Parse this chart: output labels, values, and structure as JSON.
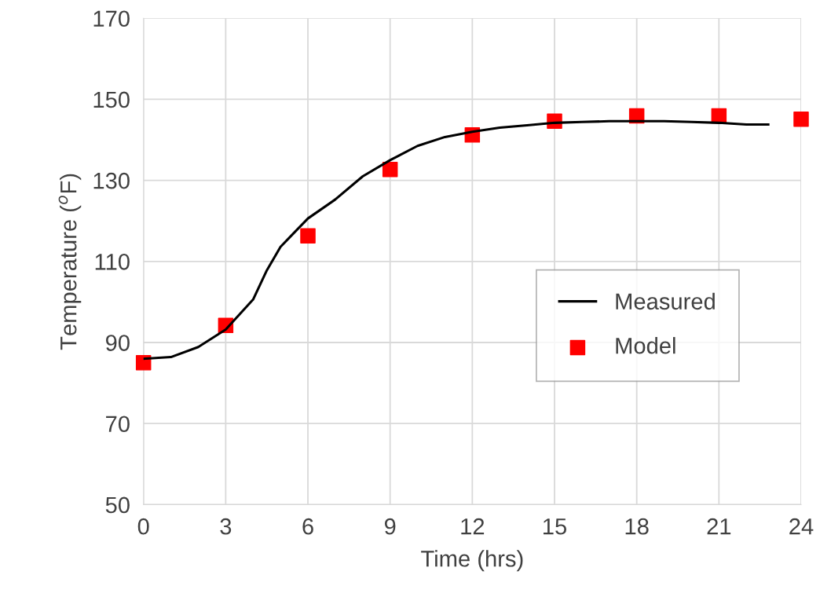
{
  "chart_data": {
    "type": "line",
    "xlabel": "Time (hrs)",
    "ylabel": "Temperature ($^{o}$F)",
    "xlim": [
      0,
      24
    ],
    "xticks": [
      0,
      3,
      6,
      9,
      12,
      15,
      18,
      21,
      24
    ],
    "ylim": [
      50,
      170
    ],
    "yticks": [
      50,
      70,
      90,
      110,
      130,
      150,
      170
    ],
    "grid": true,
    "legend": "right",
    "series": [
      {
        "name": "Measured",
        "color": "#000000",
        "marker": "none",
        "line_style": "solid",
        "x": [
          0,
          1,
          2,
          3,
          4,
          4.5,
          5,
          5.5,
          6,
          7,
          8,
          9,
          10,
          11,
          12,
          13,
          14,
          15,
          16,
          17,
          18,
          19,
          20,
          21,
          22,
          22.8
        ],
        "values": [
          86.0,
          86.4,
          88.9,
          93.2,
          100.6,
          107.8,
          113.6,
          117.1,
          120.6,
          125.3,
          131,
          135,
          138.5,
          140.7,
          142,
          143,
          143.6,
          144.2,
          144.4,
          144.6,
          144.6,
          144.6,
          144.4,
          144.2,
          143.8,
          143.8
        ]
      },
      {
        "name": "Model",
        "type": "scatter",
        "color": "#ff0000",
        "marker": "square",
        "x": [
          0,
          3,
          6,
          9,
          12,
          15,
          18,
          21,
          24
        ],
        "values": [
          85,
          94.2,
          116.3,
          132.7,
          141.2,
          144.6,
          145.9,
          145.9,
          145.1
        ]
      }
    ]
  }
}
